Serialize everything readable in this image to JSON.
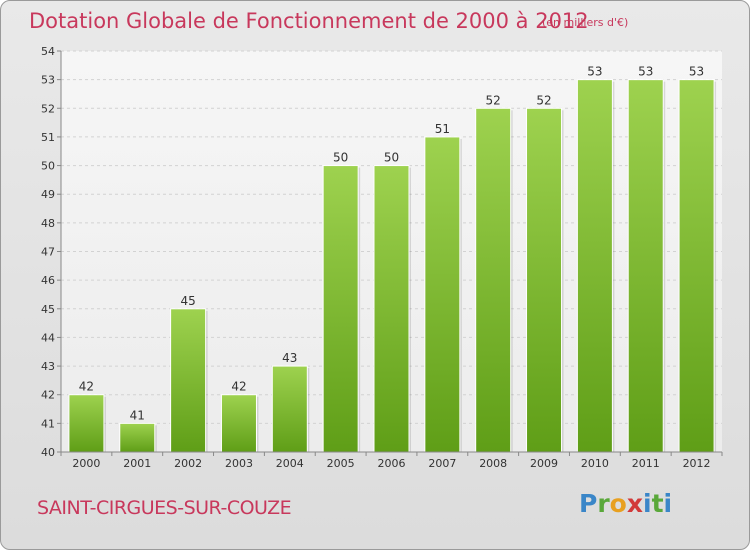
{
  "header": {
    "title": "Dotation Globale de Fonctionnement de 2000 à 2012",
    "unit": "(en milliers d'€)"
  },
  "footer": {
    "commune": "SAINT-CIRGUES-SUR-COUZE",
    "logo": "Proxiti"
  },
  "colors": {
    "title": "#c8385c",
    "bar_top": "#9ed24f",
    "bar_bottom": "#5f9e17"
  },
  "chart_data": {
    "type": "bar",
    "title": "Dotation Globale de Fonctionnement de 2000 à 2012",
    "xlabel": "",
    "ylabel": "",
    "categories": [
      "2000",
      "2001",
      "2002",
      "2003",
      "2004",
      "2005",
      "2006",
      "2007",
      "2008",
      "2009",
      "2010",
      "2011",
      "2012"
    ],
    "values": [
      42,
      41,
      45,
      42,
      43,
      50,
      50,
      51,
      52,
      52,
      53,
      53,
      53
    ],
    "ylim": [
      40,
      54
    ],
    "yticks": [
      40,
      41,
      42,
      43,
      44,
      45,
      46,
      47,
      48,
      49,
      50,
      51,
      52,
      53,
      54
    ],
    "grid": true
  }
}
